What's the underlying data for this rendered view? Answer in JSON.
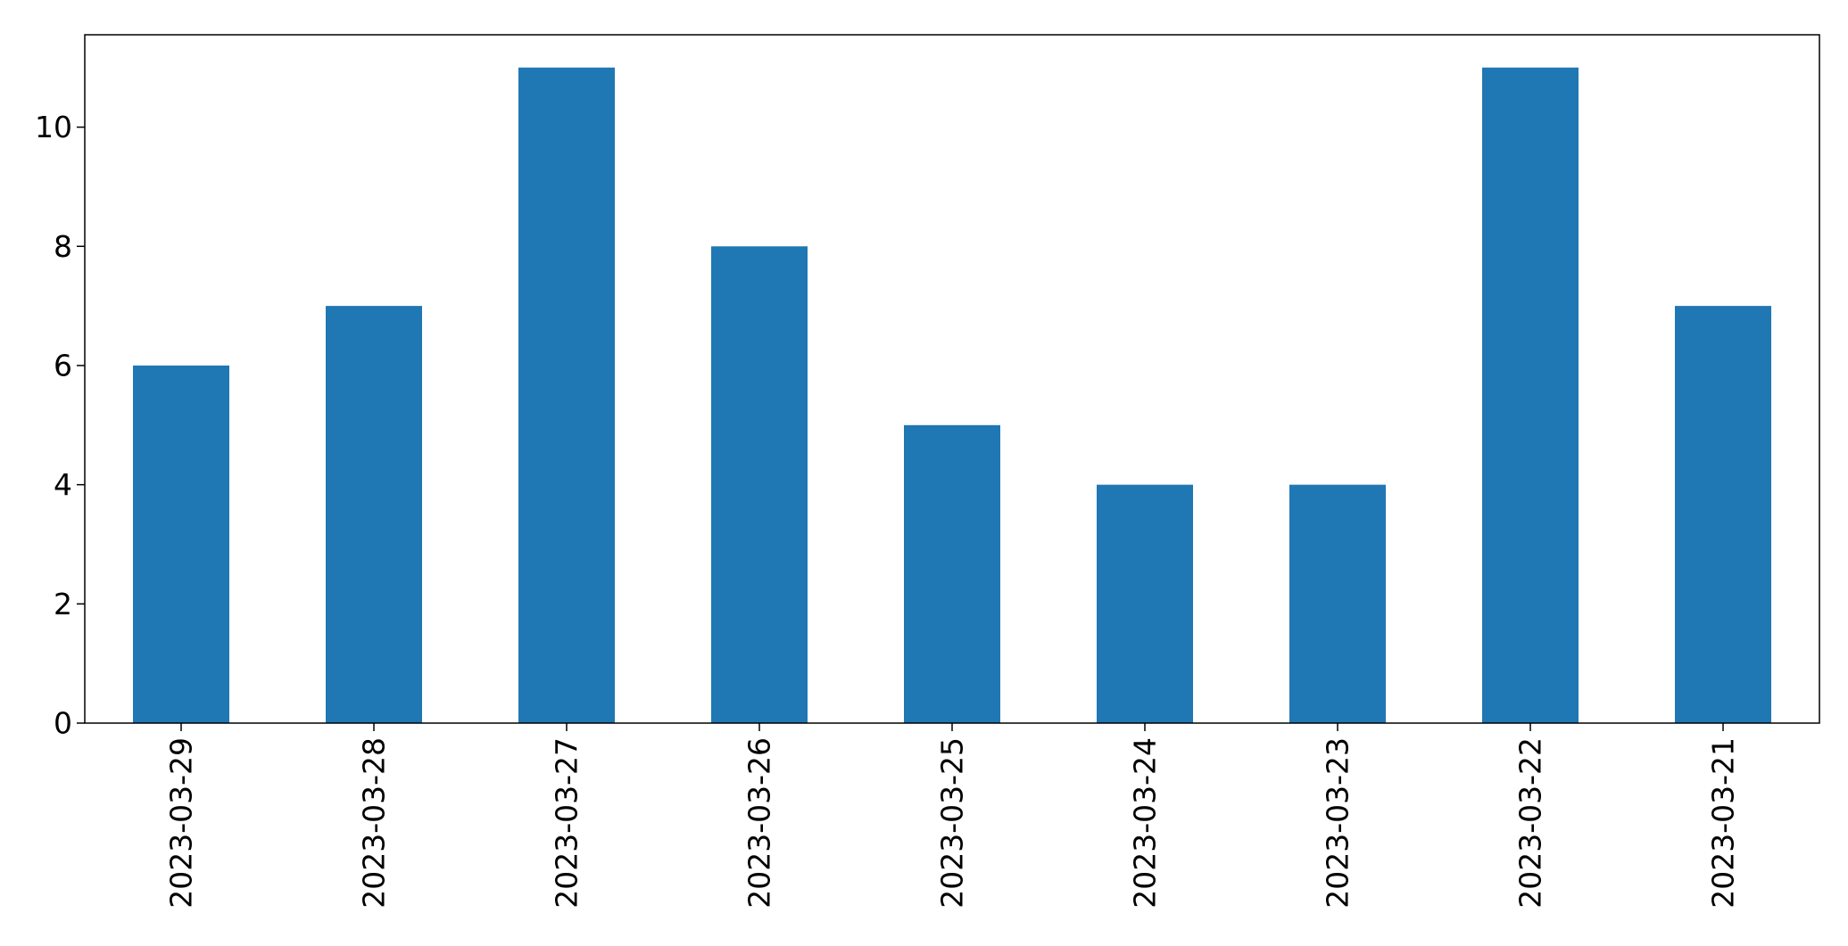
{
  "chart_data": {
    "type": "bar",
    "title": "",
    "xlabel": "",
    "ylabel": "",
    "categories": [
      "2023-03-29",
      "2023-03-28",
      "2023-03-27",
      "2023-03-26",
      "2023-03-25",
      "2023-03-24",
      "2023-03-23",
      "2023-03-22",
      "2023-03-21"
    ],
    "values": [
      6,
      7,
      11,
      8,
      5,
      4,
      4,
      11,
      7
    ],
    "ylim": [
      0,
      11.55
    ],
    "yticks": [
      0,
      2,
      4,
      6,
      8,
      10
    ],
    "grid": false,
    "legend": "none",
    "bar_color": "#1f77b4"
  }
}
